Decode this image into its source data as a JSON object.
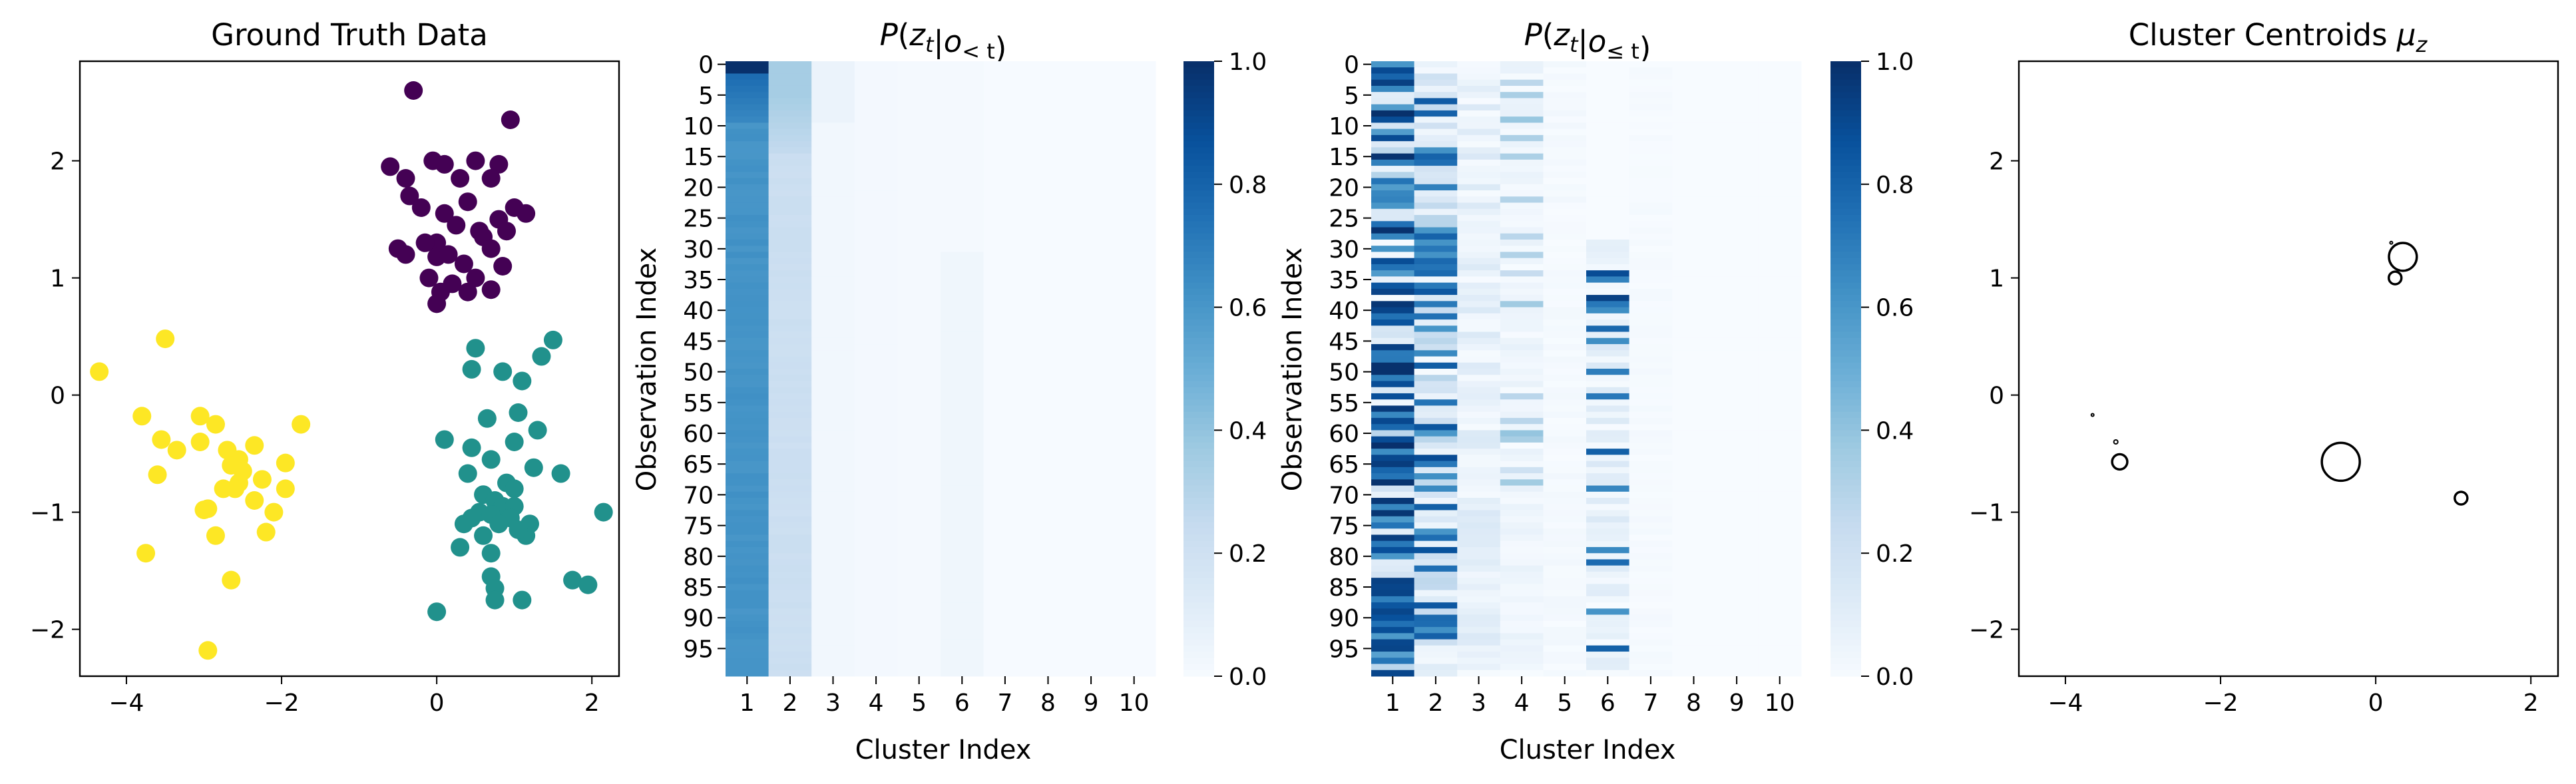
{
  "chart_data": [
    {
      "type": "scatter",
      "title": "Ground Truth Data",
      "xlim": [
        -4.6,
        2.35
      ],
      "ylim": [
        -2.4,
        2.85
      ],
      "xticks": [
        -4,
        -2,
        0,
        2
      ],
      "yticks": [
        -2,
        -1,
        0,
        1,
        2
      ],
      "tick_labels": {
        "x": [
          "−4",
          "−2",
          "0",
          "2"
        ],
        "y": [
          "−2",
          "−1",
          "0",
          "1",
          "2"
        ]
      },
      "series": [
        {
          "color": "#440154",
          "points": [
            [
              -0.3,
              2.6
            ],
            [
              0.95,
              2.35
            ],
            [
              -0.6,
              1.95
            ],
            [
              -0.05,
              2.0
            ],
            [
              0.1,
              1.97
            ],
            [
              0.5,
              2.0
            ],
            [
              0.8,
              1.97
            ],
            [
              -0.4,
              1.85
            ],
            [
              0.3,
              1.85
            ],
            [
              0.7,
              1.85
            ],
            [
              -0.35,
              1.7
            ],
            [
              0.4,
              1.65
            ],
            [
              -0.2,
              1.6
            ],
            [
              1.0,
              1.6
            ],
            [
              1.15,
              1.55
            ],
            [
              0.1,
              1.55
            ],
            [
              0.8,
              1.5
            ],
            [
              0.25,
              1.45
            ],
            [
              0.55,
              1.4
            ],
            [
              0.9,
              1.4
            ],
            [
              0.6,
              1.35
            ],
            [
              0.0,
              1.3
            ],
            [
              -0.15,
              1.3
            ],
            [
              0.7,
              1.25
            ],
            [
              -0.5,
              1.25
            ],
            [
              -0.4,
              1.2
            ],
            [
              0.0,
              1.18
            ],
            [
              0.15,
              1.2
            ],
            [
              0.35,
              1.12
            ],
            [
              0.85,
              1.1
            ],
            [
              -0.1,
              1.0
            ],
            [
              0.5,
              1.0
            ],
            [
              0.2,
              0.95
            ],
            [
              0.7,
              0.9
            ],
            [
              0.05,
              0.88
            ],
            [
              0.4,
              0.88
            ],
            [
              0.0,
              0.78
            ]
          ]
        },
        {
          "color": "#21918c",
          "points": [
            [
              0.5,
              0.4
            ],
            [
              1.5,
              0.47
            ],
            [
              1.35,
              0.33
            ],
            [
              1.1,
              0.12
            ],
            [
              0.45,
              0.22
            ],
            [
              0.85,
              0.2
            ],
            [
              1.05,
              -0.15
            ],
            [
              0.65,
              -0.2
            ],
            [
              1.3,
              -0.3
            ],
            [
              0.1,
              -0.38
            ],
            [
              0.45,
              -0.45
            ],
            [
              1.0,
              -0.4
            ],
            [
              0.7,
              -0.55
            ],
            [
              1.6,
              -0.67
            ],
            [
              1.25,
              -0.62
            ],
            [
              0.4,
              -0.67
            ],
            [
              0.9,
              -0.75
            ],
            [
              0.6,
              -0.85
            ],
            [
              1.0,
              -0.8
            ],
            [
              0.75,
              -0.9
            ],
            [
              0.85,
              -0.95
            ],
            [
              0.55,
              -1.0
            ],
            [
              1.0,
              -0.95
            ],
            [
              0.7,
              -1.02
            ],
            [
              0.95,
              -1.05
            ],
            [
              1.2,
              -1.1
            ],
            [
              2.15,
              -1.0
            ],
            [
              0.45,
              -1.05
            ],
            [
              0.35,
              -1.1
            ],
            [
              0.8,
              -1.1
            ],
            [
              0.6,
              -1.2
            ],
            [
              1.15,
              -1.2
            ],
            [
              1.05,
              -1.15
            ],
            [
              0.3,
              -1.3
            ],
            [
              0.7,
              -1.35
            ],
            [
              0.0,
              -1.85
            ],
            [
              0.7,
              -1.55
            ],
            [
              1.75,
              -1.58
            ],
            [
              1.95,
              -1.62
            ],
            [
              0.75,
              -1.65
            ],
            [
              1.1,
              -1.75
            ],
            [
              0.75,
              -1.75
            ]
          ]
        },
        {
          "color": "#fde725",
          "points": [
            [
              -3.5,
              0.48
            ],
            [
              -4.35,
              0.2
            ],
            [
              -3.8,
              -0.18
            ],
            [
              -3.05,
              -0.18
            ],
            [
              -2.85,
              -0.25
            ],
            [
              -1.75,
              -0.25
            ],
            [
              -3.55,
              -0.38
            ],
            [
              -3.05,
              -0.4
            ],
            [
              -2.35,
              -0.43
            ],
            [
              -3.35,
              -0.47
            ],
            [
              -2.7,
              -0.47
            ],
            [
              -2.55,
              -0.55
            ],
            [
              -1.95,
              -0.58
            ],
            [
              -2.65,
              -0.6
            ],
            [
              -2.5,
              -0.65
            ],
            [
              -3.6,
              -0.68
            ],
            [
              -2.25,
              -0.72
            ],
            [
              -2.55,
              -0.75
            ],
            [
              -2.75,
              -0.8
            ],
            [
              -1.95,
              -0.8
            ],
            [
              -2.6,
              -0.8
            ],
            [
              -2.35,
              -0.9
            ],
            [
              -2.95,
              -0.97
            ],
            [
              -3.0,
              -0.98
            ],
            [
              -2.1,
              -1.0
            ],
            [
              -2.85,
              -1.2
            ],
            [
              -2.2,
              -1.17
            ],
            [
              -3.75,
              -1.35
            ],
            [
              -2.65,
              -1.58
            ],
            [
              -2.95,
              -2.18
            ]
          ]
        }
      ]
    },
    {
      "type": "heatmap",
      "title_base": "P(z",
      "title_sub": "t",
      "title_mid": "|o",
      "title_sub2": "< t",
      "title_end": ")",
      "xlabel": "Cluster Index",
      "ylabel": "Observation Index",
      "xticks": [
        "1",
        "2",
        "3",
        "4",
        "5",
        "6",
        "7",
        "8",
        "9",
        "10"
      ],
      "yticks": [
        "0",
        "5",
        "10",
        "15",
        "20",
        "25",
        "30",
        "35",
        "40",
        "45",
        "50",
        "55",
        "60",
        "65",
        "70",
        "75",
        "80",
        "85",
        "90",
        "95"
      ],
      "rows": 100,
      "cols": 10,
      "mode": "prior",
      "colorbar_ticks": [
        "0.0",
        "0.2",
        "0.4",
        "0.6",
        "0.8",
        "1.0"
      ],
      "colormap": [
        "#f7fbff",
        "#deebf7",
        "#c6dbef",
        "#9ecae1",
        "#6baed6",
        "#4292c6",
        "#2171b5",
        "#08519c",
        "#08306b"
      ]
    },
    {
      "type": "heatmap",
      "title_base": "P(z",
      "title_sub": "t",
      "title_mid": "|o",
      "title_sub2": "≤ t",
      "title_end": ")",
      "xlabel": "Cluster Index",
      "ylabel": "Observation Index",
      "xticks": [
        "1",
        "2",
        "3",
        "4",
        "5",
        "6",
        "7",
        "8",
        "9",
        "10"
      ],
      "yticks": [
        "0",
        "5",
        "10",
        "15",
        "20",
        "25",
        "30",
        "35",
        "40",
        "45",
        "50",
        "55",
        "60",
        "65",
        "70",
        "75",
        "80",
        "85",
        "90",
        "95"
      ],
      "rows": 100,
      "cols": 10,
      "mode": "posterior",
      "colorbar_ticks": [
        "0.0",
        "0.2",
        "0.4",
        "0.6",
        "0.8",
        "1.0"
      ],
      "colormap": [
        "#f7fbff",
        "#deebf7",
        "#c6dbef",
        "#9ecae1",
        "#6baed6",
        "#4292c6",
        "#2171b5",
        "#08519c",
        "#08306b"
      ]
    },
    {
      "type": "scatter",
      "title_base": "Cluster Centroids μ",
      "title_sub": "z",
      "xlim": [
        -4.6,
        2.35
      ],
      "ylim": [
        -2.4,
        2.85
      ],
      "xticks": [
        -4,
        -2,
        0,
        2
      ],
      "yticks": [
        -2,
        -1,
        0,
        1,
        2
      ],
      "tick_labels": {
        "x": [
          "−4",
          "−2",
          "0",
          "2"
        ],
        "y": [
          "−2",
          "−1",
          "0",
          "1",
          "2"
        ]
      },
      "centroids": [
        {
          "x": 0.35,
          "y": 1.18,
          "size": 0.55
        },
        {
          "x": 0.25,
          "y": 1.0,
          "size": 0.25
        },
        {
          "x": 0.2,
          "y": 1.3,
          "size": 0.05
        },
        {
          "x": -3.3,
          "y": -0.57,
          "size": 0.3
        },
        {
          "x": -3.35,
          "y": -0.4,
          "size": 0.08
        },
        {
          "x": -3.65,
          "y": -0.17,
          "size": 0.04
        },
        {
          "x": -0.45,
          "y": -0.57,
          "size": 0.75
        },
        {
          "x": 1.1,
          "y": -0.88,
          "size": 0.25
        }
      ]
    }
  ]
}
